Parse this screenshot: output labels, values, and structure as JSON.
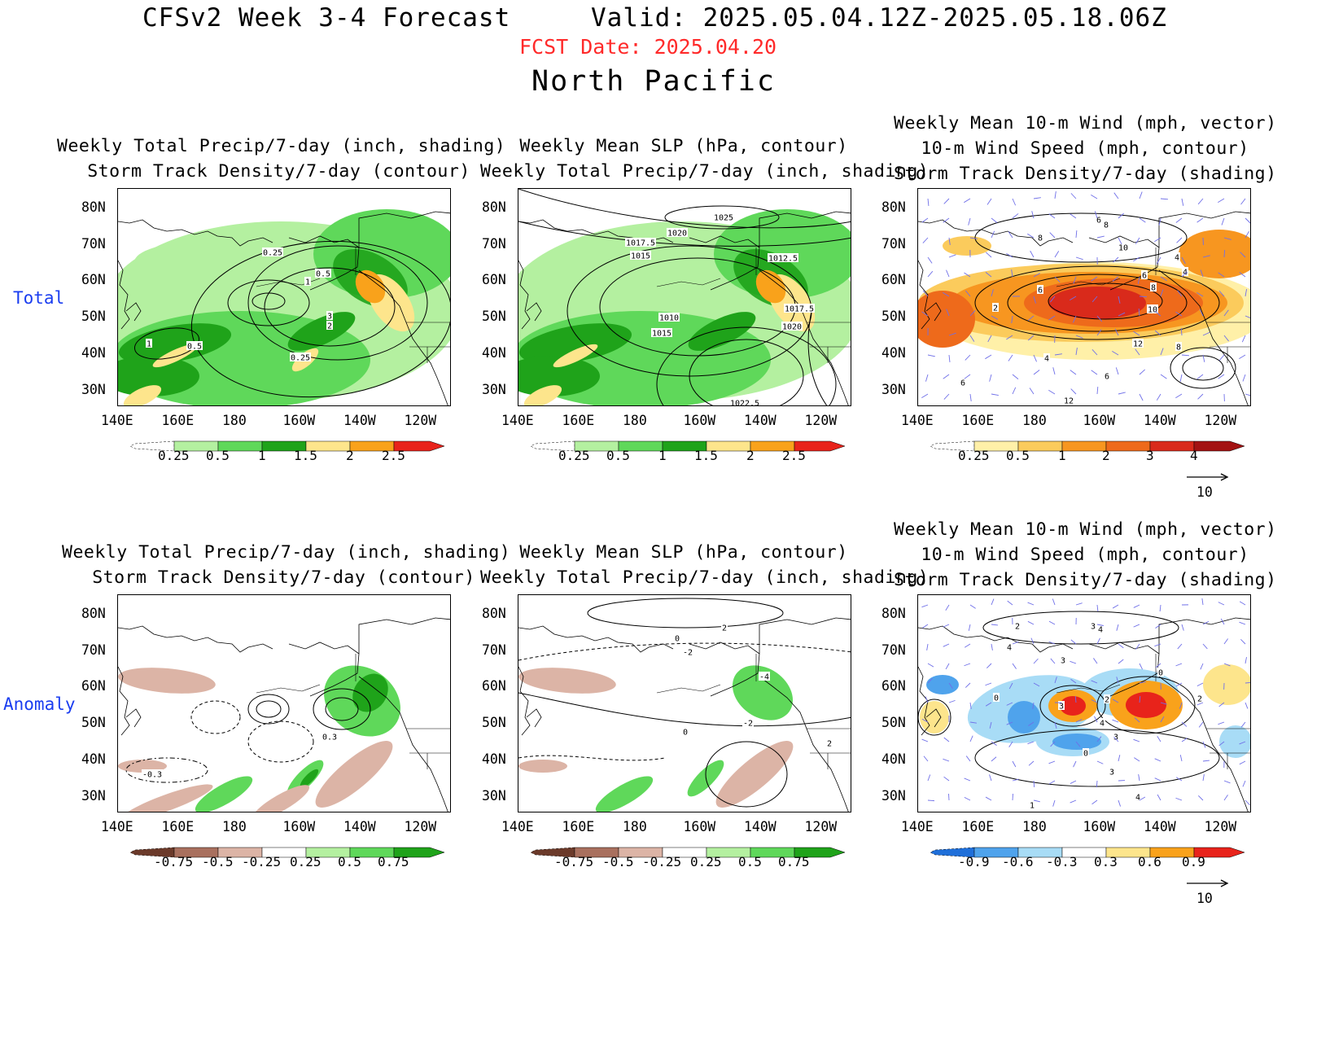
{
  "header": {
    "title": "CFSv2 Week 3-4 Forecast",
    "valid": "Valid: 2025.05.04.12Z-2025.05.18.06Z",
    "fcst_date": "FCST Date: 2025.04.20",
    "region": "North Pacific"
  },
  "rows": {
    "total": "Total",
    "anomaly": "Anomaly"
  },
  "panel_titles": {
    "p1": [
      "Weekly Total Precip/7-day (inch, shading)",
      "Storm Track Density/7-day (contour)"
    ],
    "p2": [
      "Weekly Mean SLP (hPa, contour)",
      "Weekly Total Precip/7-day (inch, shading)"
    ],
    "p3": [
      "Weekly Mean 10-m Wind (mph, vector)",
      "10-m Wind Speed (mph, contour)",
      "Storm Track Density/7-day (shading)"
    ]
  },
  "axes": {
    "lat_ticks": [
      "80N",
      "70N",
      "60N",
      "50N",
      "40N",
      "30N"
    ],
    "lon_ticks": [
      "140E",
      "160E",
      "180",
      "160W",
      "140W",
      "120W"
    ]
  },
  "colorbars": {
    "precip_total": {
      "labels": [
        "0.25",
        "0.5",
        "1",
        "1.5",
        "2",
        "2.5"
      ],
      "colors": [
        "#ffffff",
        "#b4f0a0",
        "#5fd85a",
        "#1fa31a",
        "#fde58c",
        "#f9a21b",
        "#e8231b"
      ]
    },
    "track_total": {
      "labels": [
        "0.25",
        "0.5",
        "1",
        "2",
        "3",
        "4"
      ],
      "colors": [
        "#ffffff",
        "#fff0a8",
        "#fbcb5c",
        "#f79620",
        "#ee6a1b",
        "#d92a1b",
        "#a31212"
      ]
    },
    "precip_anom": {
      "labels": [
        "-0.75",
        "-0.5",
        "-0.25",
        "0.25",
        "0.5",
        "0.75"
      ],
      "colors": [
        "#6b3a2a",
        "#a9705e",
        "#dcb4a6",
        "#ffffff",
        "#b4f0a0",
        "#5fd85a",
        "#1fa31a"
      ]
    },
    "track_anom": {
      "labels": [
        "-0.9",
        "-0.6",
        "-0.3",
        "0.3",
        "0.6",
        "0.9"
      ],
      "colors": [
        "#1f6fd9",
        "#4fa3ec",
        "#a8dcf6",
        "#ffffff",
        "#fde58c",
        "#f9a21b",
        "#e8231b"
      ]
    },
    "vector_ref": "10"
  },
  "contour_labels": {
    "p1_total": [
      "0.25",
      "0.5",
      "1",
      "3",
      "2",
      "1",
      "0.5",
      "0.25"
    ],
    "p2_total": [
      "1025",
      "1020",
      "1017.5",
      "1015",
      "1012.5",
      "1010",
      "1015",
      "1017.5",
      "1020",
      "1022.5"
    ],
    "p3_total": [
      "6",
      "8",
      "8",
      "10",
      "4",
      "4",
      "6",
      "6",
      "8",
      "2",
      "10",
      "12",
      "4",
      "6",
      "8",
      "6",
      "12"
    ],
    "p1_anom": [
      "0.3",
      "-0.3"
    ],
    "p2_anom": [
      "2",
      "0",
      "-2",
      "0",
      "-2",
      "-4",
      "2"
    ],
    "p3_anom": [
      "2",
      "3",
      "4",
      "4",
      "3",
      "0",
      "2",
      "3",
      "4",
      "0",
      "2",
      "3",
      "0",
      "3",
      "4",
      "1"
    ]
  },
  "colors": {
    "fcst_date": "#ff2a2a",
    "row_label": "#1a3df0",
    "vector": "#6f6fe8"
  }
}
